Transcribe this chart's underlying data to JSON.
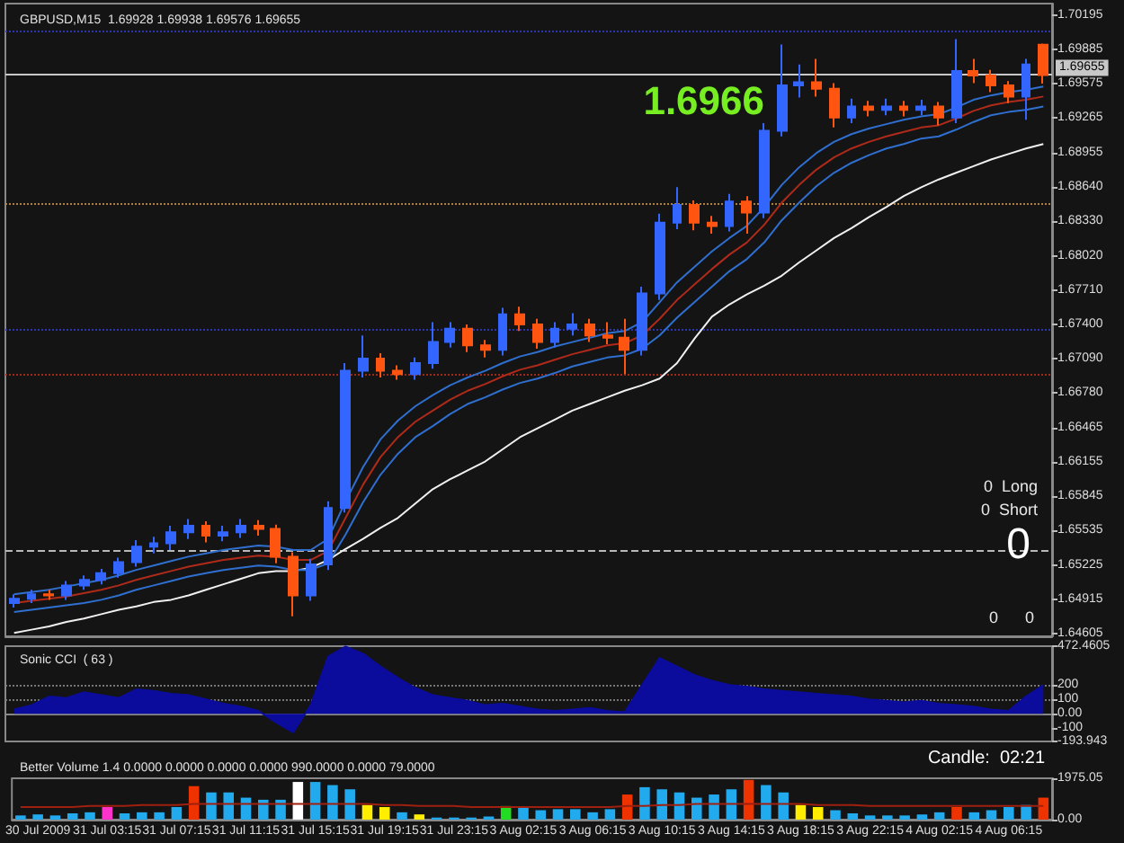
{
  "chart_data": [
    {
      "type": "candlestick",
      "title": "GBPUSD,M15  1.69928 1.69938 1.69576 1.69655",
      "categories": [
        null,
        null,
        null,
        null,
        null,
        null,
        null,
        null,
        null,
        null,
        null,
        null,
        null,
        null,
        null,
        null,
        null,
        null,
        null,
        null,
        null,
        null,
        null,
        null,
        null,
        null,
        null,
        null,
        null,
        null,
        null,
        null,
        null,
        null,
        null,
        null,
        null,
        null,
        null,
        null,
        null,
        null,
        null,
        null,
        null,
        null,
        null,
        null,
        null,
        null,
        null,
        null,
        null,
        null,
        null,
        null,
        null,
        null,
        null,
        null
      ],
      "ohlc": [
        [
          1.6488,
          1.6496,
          1.6484,
          1.6492
        ],
        [
          1.6492,
          1.65,
          1.6488,
          1.6496
        ],
        [
          1.6496,
          1.65,
          1.6491,
          1.6495
        ],
        [
          1.6495,
          1.6508,
          1.6491,
          1.6504
        ],
        [
          1.6504,
          1.6513,
          1.65,
          1.6509
        ],
        [
          1.6509,
          1.6519,
          1.6505,
          1.6515
        ],
        [
          1.6515,
          1.6529,
          1.6511,
          1.6525
        ],
        [
          1.6525,
          1.6545,
          1.6521,
          1.6539
        ],
        [
          1.6539,
          1.6548,
          1.6533,
          1.6542
        ],
        [
          1.6542,
          1.6558,
          1.6536,
          1.6552
        ],
        [
          1.6552,
          1.6564,
          1.6546,
          1.6558
        ],
        [
          1.6558,
          1.6562,
          1.6543,
          1.6549
        ],
        [
          1.6549,
          1.6558,
          1.6544,
          1.6552
        ],
        [
          1.6552,
          1.6564,
          1.6547,
          1.6558
        ],
        [
          1.6558,
          1.6563,
          1.6549,
          1.6555
        ],
        [
          1.6555,
          1.6559,
          1.6524,
          1.653
        ],
        [
          1.653,
          1.6534,
          1.6476,
          1.6495
        ],
        [
          1.6495,
          1.6528,
          1.649,
          1.6523
        ],
        [
          1.6523,
          1.658,
          1.6518,
          1.6574
        ],
        [
          1.6574,
          1.6705,
          1.657,
          1.6698
        ],
        [
          1.6698,
          1.673,
          1.6692,
          1.6709
        ],
        [
          1.6709,
          1.6714,
          1.6692,
          1.6698
        ],
        [
          1.6698,
          1.6703,
          1.669,
          1.6695
        ],
        [
          1.6695,
          1.671,
          1.669,
          1.6705
        ],
        [
          1.6705,
          1.6742,
          1.67,
          1.6724
        ],
        [
          1.6724,
          1.6742,
          1.6719,
          1.6736
        ],
        [
          1.6736,
          1.674,
          1.6715,
          1.6721
        ],
        [
          1.6721,
          1.6726,
          1.671,
          1.6717
        ],
        [
          1.6717,
          1.6755,
          1.6712,
          1.6749
        ],
        [
          1.6749,
          1.6756,
          1.6734,
          1.674
        ],
        [
          1.674,
          1.6745,
          1.6718,
          1.6724
        ],
        [
          1.6724,
          1.6742,
          1.6719,
          1.6736
        ],
        [
          1.6736,
          1.675,
          1.673,
          1.674
        ],
        [
          1.674,
          1.6745,
          1.6724,
          1.673
        ],
        [
          1.673,
          1.6742,
          1.6722,
          1.6728
        ],
        [
          1.6728,
          1.6745,
          1.6695,
          1.6717
        ],
        [
          1.6717,
          1.6774,
          1.6712,
          1.6768
        ],
        [
          1.6768,
          1.684,
          1.6762,
          1.6832
        ],
        [
          1.6832,
          1.6864,
          1.6826,
          1.6848
        ],
        [
          1.6848,
          1.6852,
          1.6825,
          1.6832
        ],
        [
          1.6832,
          1.6838,
          1.6822,
          1.6829
        ],
        [
          1.6829,
          1.6858,
          1.6824,
          1.6851
        ],
        [
          1.6851,
          1.6856,
          1.6822,
          1.6841
        ],
        [
          1.6841,
          1.6922,
          1.6836,
          1.6915
        ],
        [
          1.6915,
          1.6993,
          1.691,
          1.6956
        ],
        [
          1.6956,
          1.6975,
          1.6945,
          1.6959
        ],
        [
          1.6959,
          1.698,
          1.6946,
          1.6953
        ],
        [
          1.6953,
          1.6958,
          1.6918,
          1.6927
        ],
        [
          1.6927,
          1.6944,
          1.6922,
          1.6937
        ],
        [
          1.6937,
          1.6942,
          1.6928,
          1.6934
        ],
        [
          1.6934,
          1.6944,
          1.6929,
          1.6937
        ],
        [
          1.6937,
          1.6942,
          1.6928,
          1.6934
        ],
        [
          1.6934,
          1.6943,
          1.6929,
          1.6937
        ],
        [
          1.6937,
          1.6941,
          1.692,
          1.6927
        ],
        [
          1.6927,
          1.6998,
          1.6922,
          1.6969
        ],
        [
          1.6969,
          1.698,
          1.6958,
          1.6965
        ],
        [
          1.6965,
          1.697,
          1.695,
          1.6956
        ],
        [
          1.6956,
          1.696,
          1.694,
          1.6946
        ],
        [
          1.6946,
          1.698,
          1.6925,
          1.6975
        ],
        [
          1.69928,
          1.69938,
          1.69576,
          1.69655
        ]
      ],
      "colors": [
        "#3366ff",
        "#3366ff",
        "#ff5511",
        "#3366ff",
        "#3366ff",
        "#3366ff",
        "#3366ff",
        "#3366ff",
        "#3366ff",
        "#3366ff",
        "#3366ff",
        "#ff5511",
        "#3366ff",
        "#3366ff",
        "#ff5511",
        "#ff5511",
        "#ff5511",
        "#3366ff",
        "#3366ff",
        "#3366ff",
        "#3366ff",
        "#ff5511",
        "#ff5511",
        "#3366ff",
        "#3366ff",
        "#3366ff",
        "#ff5511",
        "#ff5511",
        "#3366ff",
        "#ff5511",
        "#ff5511",
        "#3366ff",
        "#3366ff",
        "#ff5511",
        "#ff5511",
        "#ff5511",
        "#3366ff",
        "#3366ff",
        "#3366ff",
        "#ff5511",
        "#ff5511",
        "#3366ff",
        "#ff5511",
        "#3366ff",
        "#3366ff",
        "#3366ff",
        "#ff5511",
        "#ff5511",
        "#3366ff",
        "#ff5511",
        "#3366ff",
        "#ff5511",
        "#3366ff",
        "#ff5511",
        "#3366ff",
        "#ff5511",
        "#ff5511",
        "#ff5511",
        "#3366ff",
        "#ff5511"
      ],
      "series": [
        {
          "type": "line",
          "color": "#f0f0f0",
          "values": [
            1.6461,
            1.6464,
            1.6467,
            1.6471,
            1.6474,
            1.6478,
            1.6482,
            1.6485,
            1.6489,
            1.6491,
            1.6495,
            1.65,
            1.6505,
            1.651,
            1.6515,
            1.6517,
            1.6517,
            1.652,
            1.6527,
            1.6537,
            1.6546,
            1.6556,
            1.6565,
            1.6578,
            1.6591,
            1.66,
            1.6608,
            1.6616,
            1.6627,
            1.6638,
            1.6646,
            1.6654,
            1.6662,
            1.6668,
            1.6674,
            1.668,
            1.6685,
            1.6691,
            1.6705,
            1.6727,
            1.6747,
            1.6758,
            1.6767,
            1.6775,
            1.6784,
            1.6796,
            1.6807,
            1.6818,
            1.6827,
            1.6837,
            1.6846,
            1.6856,
            1.6864,
            1.6871,
            1.6877,
            1.6883,
            1.6889,
            1.6894,
            1.6899,
            1.6903
          ]
        },
        {
          "type": "line",
          "color": "#2f6fd0",
          "values": [
            1.6496,
            1.6498,
            1.65,
            1.6503,
            1.6506,
            1.6509,
            1.6513,
            1.6518,
            1.6522,
            1.6526,
            1.653,
            1.6533,
            1.6536,
            1.6538,
            1.654,
            1.6539,
            1.6536,
            1.6536,
            1.6546,
            1.658,
            1.6611,
            1.6636,
            1.6653,
            1.6666,
            1.6676,
            1.6685,
            1.6692,
            1.6698,
            1.6705,
            1.6711,
            1.6715,
            1.672,
            1.6724,
            1.6728,
            1.6732,
            1.6734,
            1.6742,
            1.676,
            1.6778,
            1.6792,
            1.6806,
            1.6818,
            1.6829,
            1.6846,
            1.6866,
            1.6882,
            1.6895,
            1.6905,
            1.6912,
            1.6917,
            1.6921,
            1.6925,
            1.6928,
            1.693,
            1.6936,
            1.6943,
            1.6947,
            1.695,
            1.6952,
            1.6955
          ]
        },
        {
          "type": "line",
          "color": "#b02a1a",
          "values": [
            1.6488,
            1.649,
            1.6492,
            1.6494,
            1.6497,
            1.65,
            1.6504,
            1.6509,
            1.6513,
            1.6517,
            1.6521,
            1.6524,
            1.6527,
            1.6529,
            1.6531,
            1.653,
            1.6527,
            1.6527,
            1.6535,
            1.6565,
            1.6595,
            1.662,
            1.6638,
            1.6652,
            1.6662,
            1.6672,
            1.668,
            1.6686,
            1.6693,
            1.6699,
            1.6703,
            1.6708,
            1.6713,
            1.6717,
            1.6721,
            1.6723,
            1.673,
            1.6745,
            1.6762,
            1.6776,
            1.679,
            1.6803,
            1.6814,
            1.683,
            1.685,
            1.6866,
            1.688,
            1.6891,
            1.6899,
            1.6905,
            1.691,
            1.6914,
            1.6918,
            1.692,
            1.6926,
            1.6933,
            1.6938,
            1.6941,
            1.6943,
            1.6946
          ]
        },
        {
          "type": "line",
          "color": "#2f6fd0",
          "values": [
            1.648,
            1.6482,
            1.6484,
            1.6486,
            1.6488,
            1.6491,
            1.6495,
            1.65,
            1.6504,
            1.6508,
            1.6512,
            1.6515,
            1.6518,
            1.652,
            1.6522,
            1.6521,
            1.6518,
            1.6518,
            1.6524,
            1.655,
            1.6579,
            1.6604,
            1.6623,
            1.6638,
            1.6648,
            1.6659,
            1.6668,
            1.6674,
            1.6681,
            1.6687,
            1.6691,
            1.6696,
            1.6702,
            1.6706,
            1.671,
            1.6712,
            1.6718,
            1.673,
            1.6746,
            1.676,
            1.6774,
            1.6788,
            1.6799,
            1.6814,
            1.6834,
            1.685,
            1.6865,
            1.6877,
            1.6886,
            1.6893,
            1.6899,
            1.6903,
            1.6908,
            1.691,
            1.6916,
            1.6923,
            1.6929,
            1.6932,
            1.6934,
            1.6937
          ]
        }
      ],
      "ylim": [
        1.6458,
        1.703
      ],
      "yticks": [
        1.64605,
        1.64915,
        1.65225,
        1.65535,
        1.65845,
        1.66155,
        1.66465,
        {
          "value": 1.6678,
          "label": "1.66780"
        },
        {
          "value": 1.6709,
          "label": "1.67090"
        },
        {
          "value": 1.674,
          "label": "1.67400"
        },
        {
          "value": 1.6771,
          "label": "1.67710"
        },
        {
          "value": 1.6802,
          "label": "1.68020"
        },
        {
          "value": 1.6833,
          "label": "1.68330"
        },
        {
          "value": 1.6864,
          "label": "1.68640"
        },
        1.68955,
        1.69265,
        1.69575,
        1.69885,
        1.70195
      ],
      "ref_lines": [
        {
          "axis": "y",
          "value": 1.69655,
          "label": "1.69655",
          "color": "#c8c8c8",
          "line_style": "solid"
        },
        {
          "axis": "y",
          "value": 1.7005,
          "color": "#2a33b0",
          "line_style": "dotted"
        },
        {
          "axis": "y",
          "value": 1.6849,
          "color": "#b08040",
          "line_style": "dotted"
        },
        {
          "axis": "y",
          "value": 1.6735,
          "color": "#2a33b0",
          "line_style": "dotted"
        },
        {
          "axis": "y",
          "value": 1.6695,
          "color": "#a02a1a",
          "line_style": "dotted"
        },
        {
          "axis": "y",
          "value": 1.6536,
          "color": "#b8b8b8",
          "line_style": "dashed"
        }
      ],
      "annotations": [
        "1.6966",
        "0  Long",
        "0  Short",
        "0",
        "0      0"
      ],
      "tick_labels": "y",
      "marker": "none"
    },
    {
      "type": "area",
      "title": "Sonic CCI  ( 63 )",
      "categories": [
        null,
        null,
        null,
        null,
        null,
        null,
        null,
        null,
        null,
        null,
        null,
        null,
        null,
        null,
        null,
        null,
        null,
        null,
        null,
        null,
        null,
        null,
        null,
        null,
        null,
        null,
        null,
        null,
        null,
        null,
        null,
        null,
        null,
        null,
        null,
        null,
        null,
        null,
        null,
        null,
        null,
        null,
        null,
        null,
        null,
        null,
        null,
        null,
        null,
        null,
        null,
        null,
        null,
        null,
        null,
        null,
        null,
        null,
        null,
        null
      ],
      "color": "#0c0c9c",
      "values": [
        30,
        60,
        120,
        110,
        150,
        130,
        110,
        170,
        160,
        140,
        130,
        100,
        70,
        50,
        20,
        -60,
        -130,
        60,
        400,
        470,
        420,
        330,
        250,
        180,
        130,
        110,
        90,
        60,
        70,
        50,
        30,
        20,
        30,
        40,
        20,
        10,
        200,
        390,
        330,
        270,
        230,
        200,
        190,
        170,
        160,
        150,
        140,
        130,
        120,
        100,
        90,
        80,
        90,
        70,
        60,
        50,
        30,
        20,
        120,
        200
      ],
      "ylim": [
        -193.943,
        472.4605
      ],
      "yticks": [
        {
          "value": -193.943,
          "label": "-193.943"
        },
        -100,
        {
          "value": 0,
          "label": "0.00"
        },
        100,
        200,
        472.4605
      ],
      "ref_lines": [
        {
          "axis": "y",
          "value": 200,
          "color": "#777777",
          "line_style": "dotted"
        },
        {
          "axis": "y",
          "value": 100,
          "color": "#777777",
          "line_style": "dotted"
        }
      ],
      "tick_labels": "y",
      "marker": "none"
    },
    {
      "type": "bar",
      "title": "Better Volume 1.4 0.0000 0.0000 0.0000 0.0000 990.0000 0.0000 79.0000",
      "categories": [
        null,
        "30 Jul 2009",
        null,
        null,
        null,
        "31 Jul 03:15",
        null,
        null,
        null,
        "31 Jul 07:15",
        null,
        null,
        null,
        "31 Jul 11:15",
        null,
        null,
        null,
        "31 Jul 15:15",
        null,
        null,
        null,
        "31 Jul 19:15",
        null,
        null,
        null,
        "31 Jul 23:15",
        null,
        null,
        null,
        "3 Aug 02:15",
        null,
        null,
        null,
        "3 Aug 06:15",
        null,
        null,
        null,
        "3 Aug 10:15",
        null,
        null,
        null,
        "3 Aug 14:15",
        null,
        null,
        null,
        "3 Aug 18:15",
        null,
        null,
        null,
        "3 Aug 22:15",
        null,
        null,
        null,
        "4 Aug 02:15",
        null,
        null,
        null,
        "4 Aug 06:15",
        null,
        null
      ],
      "series": [
        {
          "type": "bar",
          "values": [
            200,
            250,
            200,
            300,
            350,
            600,
            300,
            350,
            350,
            600,
            1600,
            1300,
            1300,
            1050,
            950,
            950,
            1800,
            1800,
            1650,
            1450,
            700,
            600,
            350,
            250,
            100,
            100,
            100,
            150,
            650,
            600,
            450,
            500,
            500,
            350,
            500,
            1200,
            1550,
            1450,
            1300,
            1050,
            1200,
            1450,
            1900,
            1650,
            1300,
            700,
            600,
            450,
            300,
            200,
            200,
            200,
            250,
            350,
            600,
            350,
            450,
            600,
            700,
            1050
          ],
          "colors": [
            "#22aaee",
            "#22aaee",
            "#22aaee",
            "#22aaee",
            "#22aaee",
            "#ff33cc",
            "#22aaee",
            "#22aaee",
            "#22aaee",
            "#22aaee",
            "#ee3300",
            "#22aaee",
            "#22aaee",
            "#22aaee",
            "#22aaee",
            "#22aaee",
            "#ffffff",
            "#22aaee",
            "#22aaee",
            "#22aaee",
            "#ffee00",
            "#ffee00",
            "#22aaee",
            "#ffee00",
            "#22aaee",
            "#22aaee",
            "#22aaee",
            "#22aaee",
            "#22dd22",
            "#22aaee",
            "#22aaee",
            "#22aaee",
            "#22aaee",
            "#22aaee",
            "#22aaee",
            "#ee3300",
            "#22aaee",
            "#22aaee",
            "#22aaee",
            "#22aaee",
            "#22aaee",
            "#22aaee",
            "#ee3300",
            "#22aaee",
            "#22aaee",
            "#ffee00",
            "#ffee00",
            "#22aaee",
            "#22aaee",
            "#22aaee",
            "#22aaee",
            "#22aaee",
            "#22aaee",
            "#22aaee",
            "#ee3300",
            "#22aaee",
            "#22aaee",
            "#22aaee",
            "#22aaee",
            "#ee3300"
          ]
        },
        {
          "type": "line",
          "color": "#a02010",
          "values": [
            600,
            600,
            600,
            600,
            650,
            650,
            650,
            700,
            700,
            700,
            750,
            750,
            750,
            750,
            750,
            750,
            750,
            750,
            750,
            750,
            750,
            700,
            700,
            650,
            650,
            650,
            600,
            600,
            600,
            600,
            600,
            600,
            600,
            600,
            600,
            650,
            650,
            700,
            700,
            750,
            750,
            750,
            750,
            750,
            750,
            750,
            700,
            700,
            700,
            650,
            650,
            650,
            650,
            650,
            650,
            650,
            650,
            650,
            650,
            650
          ]
        }
      ],
      "ylim": [
        0,
        1975.05
      ],
      "yticks": [
        {
          "value": 0,
          "label": "0.00"
        },
        1975.05
      ],
      "annotations": [
        "Candle:  02:21"
      ],
      "marker": "none"
    }
  ]
}
